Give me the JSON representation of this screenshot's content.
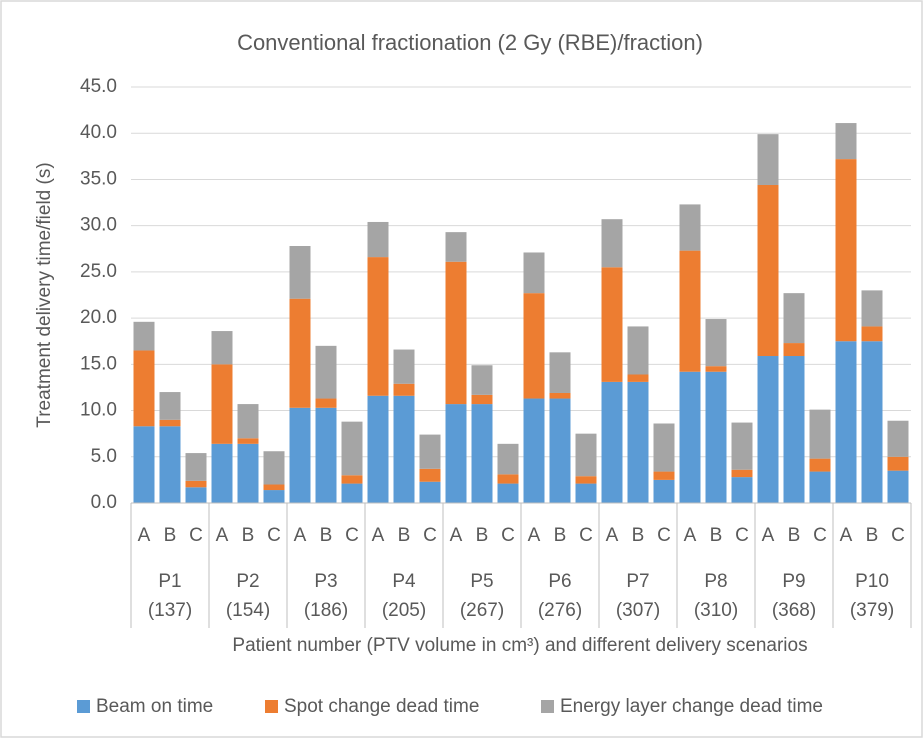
{
  "chart_data": {
    "type": "stacked_bar",
    "title": "Conventional fractionation (2 Gy (RBE)/fraction)",
    "y_label": "Treatment delivery time/field (s)",
    "x_label": "Patient number (PTV volume in cm³) and different delivery scenarios",
    "categories": [
      "A",
      "B",
      "C",
      "A",
      "B",
      "C",
      "A",
      "B",
      "C",
      "A",
      "B",
      "C",
      "A",
      "B",
      "C",
      "A",
      "B",
      "C",
      "A",
      "B",
      "C",
      "A",
      "B",
      "C",
      "A",
      "B",
      "C",
      "A",
      "B",
      "C"
    ],
    "groups": [
      {
        "label": "P1",
        "volume": "(137)"
      },
      {
        "label": "P2",
        "volume": "(154)"
      },
      {
        "label": "P3",
        "volume": "(186)"
      },
      {
        "label": "P4",
        "volume": "(205)"
      },
      {
        "label": "P5",
        "volume": "(267)"
      },
      {
        "label": "P6",
        "volume": "(276)"
      },
      {
        "label": "P7",
        "volume": "(307)"
      },
      {
        "label": "P8",
        "volume": "(310)"
      },
      {
        "label": "P9",
        "volume": "(368)"
      },
      {
        "label": "P10",
        "volume": "(379)"
      }
    ],
    "series": [
      {
        "name": "Beam on time",
        "color": "#5b9bd5",
        "values": [
          8.3,
          8.3,
          1.7,
          6.4,
          6.4,
          1.4,
          10.3,
          10.3,
          2.1,
          11.6,
          11.6,
          2.3,
          10.7,
          10.7,
          2.1,
          11.3,
          11.3,
          2.1,
          13.1,
          13.1,
          2.5,
          14.2,
          14.2,
          2.8,
          15.9,
          15.9,
          3.4,
          17.5,
          17.5,
          3.5
        ]
      },
      {
        "name": "Spot change dead time",
        "color": "#ed7d31",
        "values": [
          8.2,
          0.7,
          0.7,
          8.6,
          0.6,
          0.6,
          11.8,
          1.0,
          0.9,
          15.0,
          1.3,
          1.4,
          15.4,
          1.0,
          1.0,
          11.4,
          0.6,
          0.8,
          12.4,
          0.8,
          0.9,
          13.1,
          0.6,
          0.8,
          18.5,
          1.4,
          1.4,
          19.7,
          1.6,
          1.5
        ]
      },
      {
        "name": "Energy layer change dead time",
        "color": "#a5a5a5",
        "values": [
          3.1,
          3.0,
          3.0,
          3.6,
          3.7,
          3.6,
          5.7,
          5.7,
          5.8,
          3.8,
          3.7,
          3.7,
          3.2,
          3.2,
          3.3,
          4.4,
          4.4,
          4.6,
          5.2,
          5.2,
          5.2,
          5.0,
          5.1,
          5.1,
          5.5,
          5.4,
          5.3,
          3.9,
          3.9,
          3.9
        ]
      }
    ],
    "ylim": [
      0,
      45
    ],
    "yticks": [
      {
        "value": 0,
        "label": "0.0"
      },
      {
        "value": 5,
        "label": "5.0"
      },
      {
        "value": 10,
        "label": "10.0"
      },
      {
        "value": 15,
        "label": "15.0"
      },
      {
        "value": 20,
        "label": "20.0"
      },
      {
        "value": 25,
        "label": "25.0"
      },
      {
        "value": 30,
        "label": "30.0"
      },
      {
        "value": 35,
        "label": "35.0"
      },
      {
        "value": 40,
        "label": "40.0"
      },
      {
        "value": 45,
        "label": "45.0"
      }
    ],
    "grid": true,
    "legend": "bottom"
  }
}
